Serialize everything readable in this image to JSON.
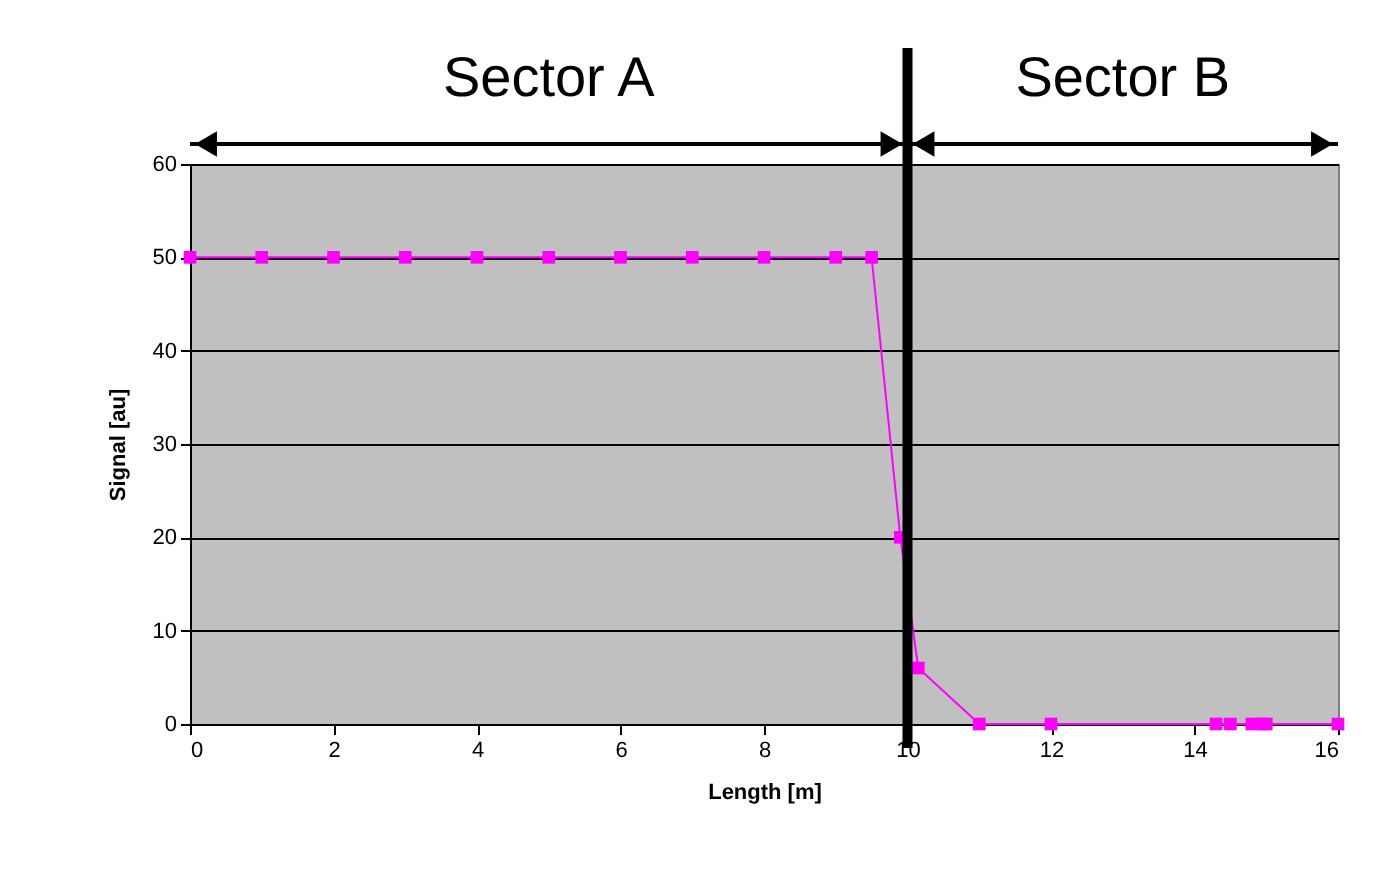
{
  "chart_data": {
    "type": "line",
    "xlabel": "Length [m]",
    "ylabel": "Signal [au]",
    "annotations": [
      "Sector A",
      "Sector B"
    ],
    "series": [
      {
        "color": "#ff00ff",
        "x": [
          0,
          1,
          2,
          3,
          4,
          5,
          6,
          7,
          8,
          9,
          9.5,
          9.9,
          10.15,
          11,
          12,
          14.3,
          14.5,
          14.8,
          14.95,
          15,
          16
        ],
        "values": [
          50,
          50,
          50,
          50,
          50,
          50,
          50,
          50,
          50,
          50,
          50,
          20,
          6,
          0,
          0,
          0,
          0,
          0,
          0,
          0,
          0
        ]
      }
    ],
    "xlim": [
      0,
      16
    ],
    "xticks": [
      0,
      2,
      4,
      6,
      8,
      10,
      12,
      14,
      16
    ],
    "ylim": [
      0,
      60
    ],
    "yticks": [
      0,
      10,
      20,
      30,
      40,
      50,
      60
    ],
    "ref_lines": [
      {
        "axis": "x",
        "value": 10,
        "color": "#000000"
      }
    ],
    "grid": "y",
    "marker": "square",
    "line_style": "solid"
  }
}
